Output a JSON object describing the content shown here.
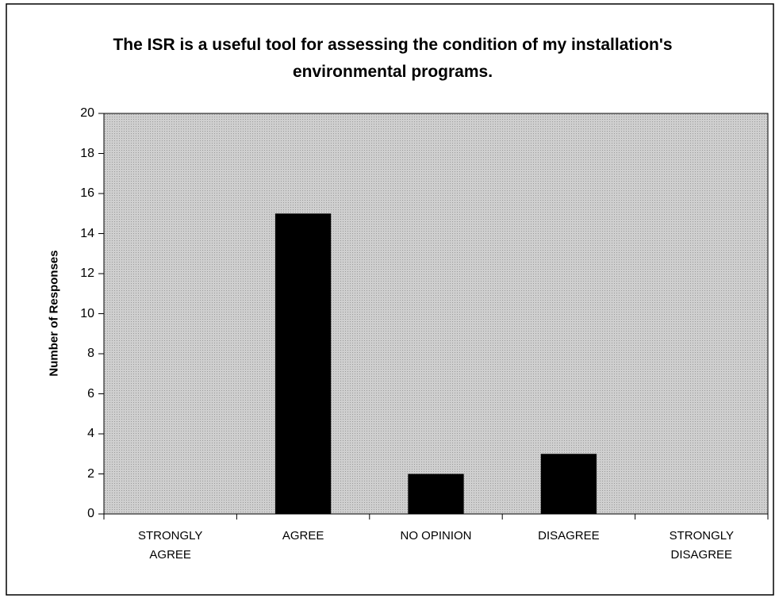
{
  "chart_data": {
    "type": "bar",
    "title": "The ISR is a useful tool for assessing the condition of my installation's environmental programs.",
    "y_label": "Number of Responses",
    "categories": [
      "STRONGLY AGREE",
      "AGREE",
      "NO OPINION",
      "DISAGREE",
      "STRONGLY DISAGREE"
    ],
    "values": [
      0,
      15,
      2,
      3,
      0
    ],
    "color": "#000000",
    "ylim": [
      0,
      20
    ],
    "yticks": [
      0,
      2,
      4,
      6,
      8,
      10,
      12,
      14,
      16,
      18,
      20
    ]
  }
}
